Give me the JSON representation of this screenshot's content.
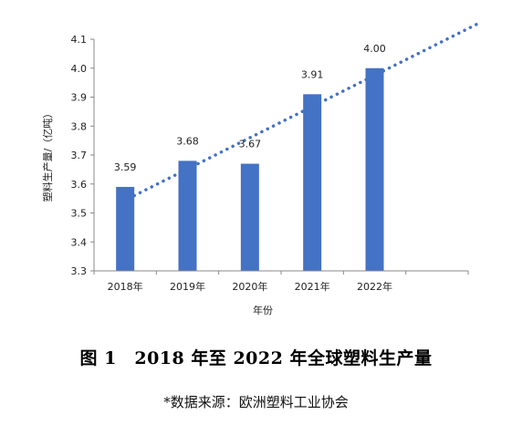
{
  "chart_data": {
    "type": "bar",
    "categories": [
      "2018年",
      "2019年",
      "2020年",
      "2021年",
      "2022年"
    ],
    "values": [
      3.59,
      3.68,
      3.67,
      3.91,
      4.0
    ],
    "data_labels": [
      "3.59",
      "3.68",
      "3.67",
      "3.91",
      "4.00"
    ],
    "xlabel": "年份",
    "ylabel": "塑料生产量/（亿吨）",
    "ylim": [
      3.3,
      4.1
    ],
    "yticks": [
      "3.3",
      "3.4",
      "3.5",
      "3.6",
      "3.7",
      "3.8",
      "3.9",
      "4.0",
      "4.1"
    ],
    "trendline": {
      "style": "dotted linear"
    },
    "grid": false,
    "bar_color": "#4472C4",
    "trend_color": "#4472C4"
  },
  "caption": "图 1　2018 年至 2022 年全球塑料生产量",
  "source": "*数据来源：欧洲塑料工业协会"
}
